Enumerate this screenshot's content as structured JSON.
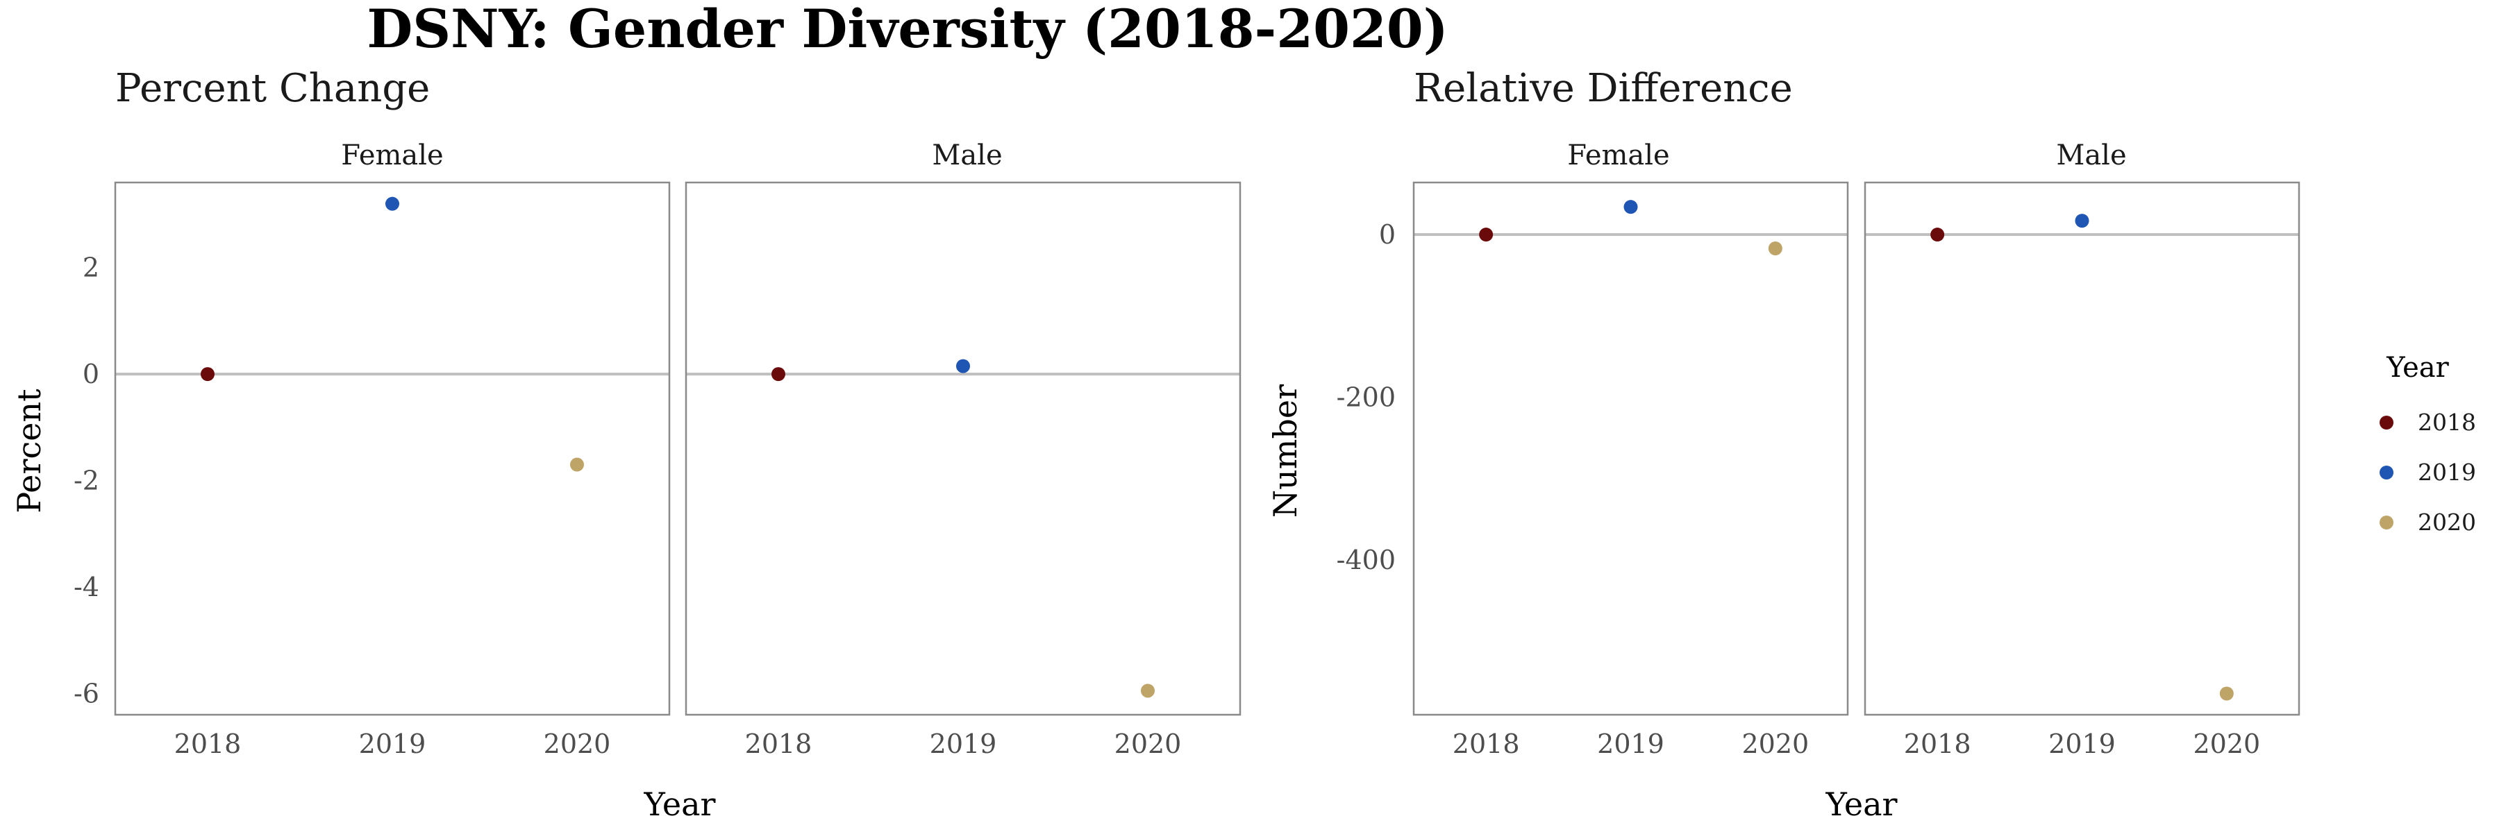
{
  "figure": {
    "title": "DSNY: Gender Diversity (2018-2020)"
  },
  "legend": {
    "title": "Year",
    "placement": "right",
    "items": [
      {
        "label": "2018",
        "color": "#6b0a0a"
      },
      {
        "label": "2019",
        "color": "#1f55b3"
      },
      {
        "label": "2020",
        "color": "#bfa468"
      }
    ]
  },
  "chart_data": [
    {
      "type": "scatter",
      "subtitle": "Percent Change",
      "xlabel": "Year",
      "ylabel": "Percent",
      "x_categories": [
        "2018",
        "2019",
        "2020"
      ],
      "ylim": [
        -6.4,
        3.6
      ],
      "y_ticks": [
        2,
        0,
        -2,
        -4,
        -6
      ],
      "y_tick_labels": [
        "2",
        "0",
        "-2",
        "-4",
        "-6"
      ],
      "reference_line_y": 0,
      "grid": false,
      "facets": [
        {
          "name": "Female",
          "points": [
            {
              "x": "2018",
              "y": 0
            },
            {
              "x": "2019",
              "y": 3.2
            },
            {
              "x": "2020",
              "y": -1.7
            }
          ]
        },
        {
          "name": "Male",
          "points": [
            {
              "x": "2018",
              "y": 0
            },
            {
              "x": "2019",
              "y": 0.15
            },
            {
              "x": "2020",
              "y": -5.95
            }
          ]
        }
      ]
    },
    {
      "type": "scatter",
      "subtitle": "Relative Difference",
      "xlabel": "Year",
      "ylabel": "Number",
      "x_categories": [
        "2018",
        "2019",
        "2020"
      ],
      "ylim": [
        -590,
        64
      ],
      "y_ticks": [
        0,
        -200,
        -400
      ],
      "y_tick_labels": [
        "0",
        "-200",
        "-400"
      ],
      "reference_line_y": 0,
      "grid": false,
      "facets": [
        {
          "name": "Female",
          "points": [
            {
              "x": "2018",
              "y": 0
            },
            {
              "x": "2019",
              "y": 34
            },
            {
              "x": "2020",
              "y": -17
            }
          ]
        },
        {
          "name": "Male",
          "points": [
            {
              "x": "2018",
              "y": 0
            },
            {
              "x": "2019",
              "y": 17
            },
            {
              "x": "2020",
              "y": -564
            }
          ]
        }
      ]
    }
  ]
}
